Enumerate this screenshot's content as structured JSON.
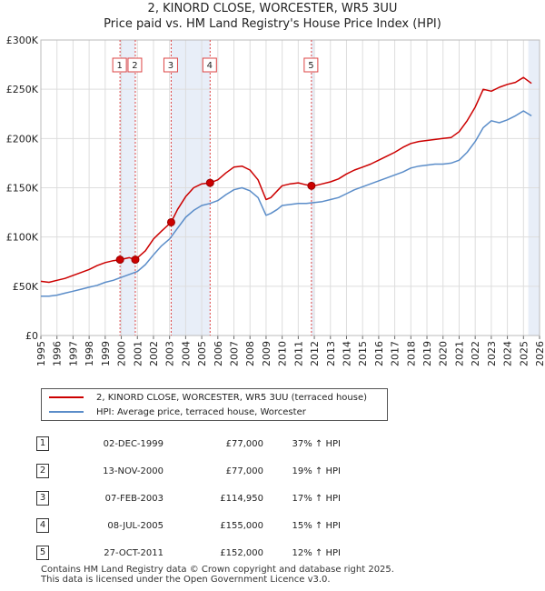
{
  "title_line1": "2, KINORD CLOSE, WORCESTER, WR5 3UU",
  "title_line2": "Price paid vs. HM Land Registry's House Price Index (HPI)",
  "colors": {
    "property": "#cc0000",
    "hpi": "#5b8dc9",
    "shade": "#e8eef8",
    "grid": "#dddddd"
  },
  "chart_data": {
    "type": "line",
    "title": "2, KINORD CLOSE, WORCESTER, WR5 3UU",
    "subtitle": "Price paid vs. HM Land Registry's House Price Index (HPI)",
    "xlabel": "",
    "ylabel": "",
    "xlim": [
      1995,
      2026
    ],
    "ylim": [
      0,
      300000
    ],
    "y_ticks": [
      {
        "value": 0,
        "label": "£0"
      },
      {
        "value": 50000,
        "label": "£50K"
      },
      {
        "value": 100000,
        "label": "£100K"
      },
      {
        "value": 150000,
        "label": "£150K"
      },
      {
        "value": 200000,
        "label": "£200K"
      },
      {
        "value": 250000,
        "label": "£250K"
      },
      {
        "value": 300000,
        "label": "£300K"
      }
    ],
    "x_ticks": [
      "1995",
      "1996",
      "1997",
      "1998",
      "1999",
      "2000",
      "2001",
      "2002",
      "2003",
      "2004",
      "2005",
      "2006",
      "2007",
      "2008",
      "2009",
      "2010",
      "2011",
      "2012",
      "2013",
      "2014",
      "2015",
      "2016",
      "2017",
      "2018",
      "2019",
      "2020",
      "2021",
      "2022",
      "2023",
      "2024",
      "2025",
      "2026"
    ],
    "series": [
      {
        "name": "2, KINORD CLOSE, WORCESTER, WR5 3UU (terraced house)",
        "color": "#cc0000",
        "x": [
          1995.0,
          1995.5,
          1996.0,
          1996.5,
          1997.0,
          1997.5,
          1998.0,
          1998.5,
          1999.0,
          1999.5,
          1999.92,
          2000.5,
          2000.87,
          2001.5,
          2002.0,
          2002.5,
          2003.1,
          2003.5,
          2004.0,
          2004.5,
          2005.0,
          2005.52,
          2006.0,
          2006.5,
          2007.0,
          2007.5,
          2008.0,
          2008.5,
          2009.0,
          2009.3,
          2009.7,
          2010.0,
          2010.5,
          2011.0,
          2011.5,
          2011.82,
          2012.0,
          2012.5,
          2013.0,
          2013.5,
          2014.0,
          2014.5,
          2015.0,
          2015.5,
          2016.0,
          2016.5,
          2017.0,
          2017.5,
          2018.0,
          2018.5,
          2019.0,
          2019.5,
          2020.0,
          2020.5,
          2021.0,
          2021.5,
          2022.0,
          2022.5,
          2023.0,
          2023.5,
          2024.0,
          2024.5,
          2025.0,
          2025.5
        ],
        "y": [
          55000,
          54000,
          56000,
          58000,
          61000,
          64000,
          67000,
          71000,
          74000,
          76000,
          77000,
          79000,
          77000,
          86000,
          98000,
          106000,
          114950,
          128000,
          141000,
          150000,
          154000,
          155000,
          158000,
          165000,
          171000,
          172000,
          168000,
          158000,
          138000,
          140000,
          147000,
          152000,
          154000,
          155000,
          153000,
          152000,
          152000,
          154000,
          156000,
          159000,
          164000,
          168000,
          171000,
          174000,
          178000,
          182000,
          186000,
          191000,
          195000,
          197000,
          198000,
          199000,
          200000,
          201000,
          207000,
          218000,
          232000,
          250000,
          248000,
          252000,
          255000,
          257000,
          262000,
          256000
        ]
      },
      {
        "name": "HPI: Average price, terraced house, Worcester",
        "color": "#5b8dc9",
        "x": [
          1995.0,
          1995.5,
          1996.0,
          1996.5,
          1997.0,
          1997.5,
          1998.0,
          1998.5,
          1999.0,
          1999.5,
          2000.0,
          2000.5,
          2001.0,
          2001.5,
          2002.0,
          2002.5,
          2003.0,
          2003.5,
          2004.0,
          2004.5,
          2005.0,
          2005.5,
          2006.0,
          2006.5,
          2007.0,
          2007.5,
          2008.0,
          2008.5,
          2009.0,
          2009.3,
          2009.7,
          2010.0,
          2010.5,
          2011.0,
          2011.5,
          2012.0,
          2012.5,
          2013.0,
          2013.5,
          2014.0,
          2014.5,
          2015.0,
          2015.5,
          2016.0,
          2016.5,
          2017.0,
          2017.5,
          2018.0,
          2018.5,
          2019.0,
          2019.5,
          2020.0,
          2020.5,
          2021.0,
          2021.5,
          2022.0,
          2022.5,
          2023.0,
          2023.5,
          2024.0,
          2024.5,
          2025.0,
          2025.5
        ],
        "y": [
          40000,
          40000,
          41000,
          43000,
          45000,
          47000,
          49000,
          51000,
          54000,
          56000,
          59000,
          62000,
          65000,
          72000,
          82000,
          91000,
          98000,
          109000,
          120000,
          127000,
          132000,
          134000,
          137000,
          143000,
          148000,
          150000,
          147000,
          140000,
          122000,
          124000,
          128000,
          132000,
          133000,
          134000,
          134000,
          135000,
          136000,
          138000,
          140000,
          144000,
          148000,
          151000,
          154000,
          157000,
          160000,
          163000,
          166000,
          170000,
          172000,
          173000,
          174000,
          174000,
          175000,
          178000,
          186000,
          197000,
          211000,
          218000,
          216000,
          219000,
          223000,
          228000,
          223000
        ]
      }
    ],
    "markers": [
      {
        "id": "1",
        "x": 1999.92,
        "y": 77000
      },
      {
        "id": "2",
        "x": 2000.87,
        "y": 77000
      },
      {
        "id": "3",
        "x": 2003.1,
        "y": 114950
      },
      {
        "id": "4",
        "x": 2005.52,
        "y": 155000
      },
      {
        "id": "5",
        "x": 2011.82,
        "y": 152000
      }
    ],
    "shaded_ranges": [
      [
        1999.92,
        2000.87
      ],
      [
        2003.1,
        2005.52
      ],
      [
        2011.82,
        2012.0
      ],
      [
        2025.3,
        2026.0
      ]
    ]
  },
  "legend": {
    "property_label": "2, KINORD CLOSE, WORCESTER, WR5 3UU (terraced house)",
    "hpi_label": "HPI: Average price, terraced house, Worcester"
  },
  "transactions": [
    {
      "num": "1",
      "date": "02-DEC-1999",
      "price": "£77,000",
      "hpi": "37% ↑ HPI"
    },
    {
      "num": "2",
      "date": "13-NOV-2000",
      "price": "£77,000",
      "hpi": "19% ↑ HPI"
    },
    {
      "num": "3",
      "date": "07-FEB-2003",
      "price": "£114,950",
      "hpi": "17% ↑ HPI"
    },
    {
      "num": "4",
      "date": "08-JUL-2005",
      "price": "£155,000",
      "hpi": "15% ↑ HPI"
    },
    {
      "num": "5",
      "date": "27-OCT-2011",
      "price": "£152,000",
      "hpi": "12% ↑ HPI"
    }
  ],
  "footer": {
    "line1": "Contains HM Land Registry data © Crown copyright and database right 2025.",
    "line2": "This data is licensed under the Open Government Licence v3.0."
  }
}
